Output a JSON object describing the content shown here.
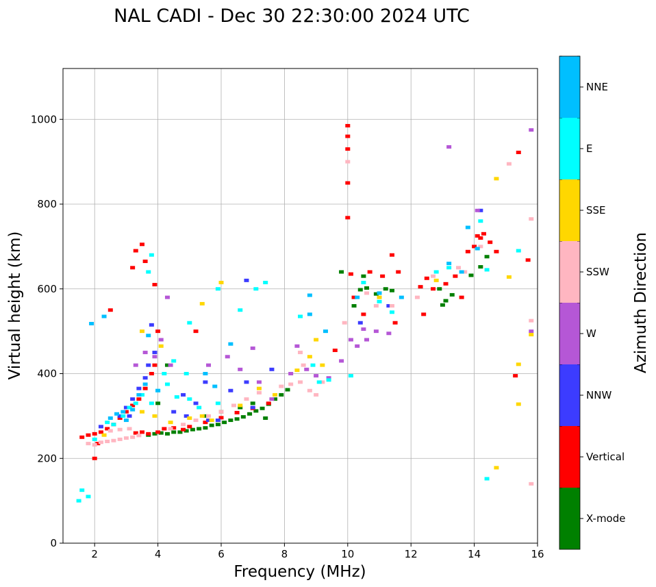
{
  "chart_data": {
    "type": "scatter",
    "title": "NAL CADI - Dec 30 22:30:00 2024 UTC",
    "xlabel": "Frequency (MHz)",
    "ylabel": "Virtual height (km)",
    "xlim": [
      1,
      16
    ],
    "ylim": [
      0,
      1120
    ],
    "xticks": [
      2,
      4,
      6,
      8,
      10,
      12,
      14,
      16
    ],
    "yticks": [
      0,
      200,
      400,
      600,
      800,
      1000
    ],
    "grid": true,
    "colorbar": {
      "label": "Azimuth Direction",
      "placement": "right",
      "categories": [
        {
          "name": "X-mode",
          "color": "#008000"
        },
        {
          "name": "Vertical",
          "color": "#ff0000"
        },
        {
          "name": "NNW",
          "color": "#3c3cff"
        },
        {
          "name": "W",
          "color": "#b557d6"
        },
        {
          "name": "SSW",
          "color": "#ffb6c1"
        },
        {
          "name": "SSE",
          "color": "#ffd700"
        },
        {
          "name": "E",
          "color": "#00ffff"
        },
        {
          "name": "NNE",
          "color": "#00bfff"
        }
      ]
    },
    "series": [
      {
        "name": "X-mode",
        "points": [
          [
            3.7,
            255
          ],
          [
            3.9,
            258
          ],
          [
            4.1,
            260
          ],
          [
            4.3,
            258
          ],
          [
            4.5,
            262
          ],
          [
            4.7,
            262
          ],
          [
            4.9,
            265
          ],
          [
            5.1,
            268
          ],
          [
            5.3,
            270
          ],
          [
            5.5,
            272
          ],
          [
            5.7,
            278
          ],
          [
            5.9,
            280
          ],
          [
            6.1,
            285
          ],
          [
            6.3,
            290
          ],
          [
            6.5,
            293
          ],
          [
            6.7,
            298
          ],
          [
            6.9,
            305
          ],
          [
            7.1,
            312
          ],
          [
            7.3,
            318
          ],
          [
            7.5,
            328
          ],
          [
            7.7,
            340
          ],
          [
            7.9,
            350
          ],
          [
            8.1,
            362
          ],
          [
            10.4,
            598
          ],
          [
            10.6,
            602
          ],
          [
            10.9,
            588
          ],
          [
            11.2,
            600
          ],
          [
            11.4,
            596
          ],
          [
            13.0,
            562
          ],
          [
            13.1,
            572
          ],
          [
            13.3,
            586
          ],
          [
            13.9,
            632
          ],
          [
            14.2,
            652
          ],
          [
            14.4,
            676
          ],
          [
            5.5,
            300
          ],
          [
            6.0,
            310
          ],
          [
            6.6,
            320
          ],
          [
            7.0,
            330
          ],
          [
            7.4,
            295
          ],
          [
            9.8,
            640
          ],
          [
            10.2,
            560
          ],
          [
            10.5,
            630
          ],
          [
            11.0,
            590
          ],
          [
            12.9,
            600
          ],
          [
            4.3,
            420
          ],
          [
            4.0,
            330
          ]
        ]
      },
      {
        "name": "Vertical",
        "points": [
          [
            1.6,
            250
          ],
          [
            1.8,
            255
          ],
          [
            2.0,
            258
          ],
          [
            2.2,
            262
          ],
          [
            2.4,
            270
          ],
          [
            2.6,
            280
          ],
          [
            2.8,
            295
          ],
          [
            3.0,
            310
          ],
          [
            3.2,
            325
          ],
          [
            3.4,
            340
          ],
          [
            3.6,
            365
          ],
          [
            3.8,
            400
          ],
          [
            3.9,
            420
          ],
          [
            3.3,
            260
          ],
          [
            3.5,
            262
          ],
          [
            3.7,
            258
          ],
          [
            4.0,
            262
          ],
          [
            4.2,
            270
          ],
          [
            4.5,
            272
          ],
          [
            4.8,
            268
          ],
          [
            5.0,
            275
          ],
          [
            5.5,
            285
          ],
          [
            6.0,
            296
          ],
          [
            6.5,
            308
          ],
          [
            7.0,
            318
          ],
          [
            7.5,
            330
          ],
          [
            3.3,
            690
          ],
          [
            3.2,
            650
          ],
          [
            3.5,
            705
          ],
          [
            3.6,
            665
          ],
          [
            2.5,
            550
          ],
          [
            3.9,
            610
          ],
          [
            4.0,
            500
          ],
          [
            5.2,
            500
          ],
          [
            10.0,
            985
          ],
          [
            10.0,
            960
          ],
          [
            10.0,
            930
          ],
          [
            10.0,
            850
          ],
          [
            10.0,
            768
          ],
          [
            10.1,
            635
          ],
          [
            10.2,
            580
          ],
          [
            10.7,
            640
          ],
          [
            11.1,
            630
          ],
          [
            11.4,
            680
          ],
          [
            11.6,
            640
          ],
          [
            12.3,
            605
          ],
          [
            12.4,
            540
          ],
          [
            12.7,
            600
          ],
          [
            13.1,
            612
          ],
          [
            13.4,
            630
          ],
          [
            13.8,
            688
          ],
          [
            14.0,
            700
          ],
          [
            14.2,
            720
          ],
          [
            14.3,
            730
          ],
          [
            14.5,
            710
          ],
          [
            14.7,
            688
          ],
          [
            14.1,
            725
          ],
          [
            13.6,
            580
          ],
          [
            15.4,
            922
          ],
          [
            15.7,
            668
          ],
          [
            15.3,
            395
          ],
          [
            9.6,
            455
          ],
          [
            10.5,
            540
          ],
          [
            11.5,
            520
          ],
          [
            2.0,
            200
          ],
          [
            2.1,
            235
          ],
          [
            12.5,
            625
          ]
        ]
      },
      {
        "name": "NNW",
        "points": [
          [
            2.8,
            300
          ],
          [
            3.0,
            320
          ],
          [
            3.2,
            340
          ],
          [
            3.4,
            365
          ],
          [
            3.6,
            390
          ],
          [
            3.7,
            420
          ],
          [
            4.8,
            350
          ],
          [
            5.2,
            330
          ],
          [
            5.6,
            290
          ],
          [
            6.3,
            360
          ],
          [
            6.8,
            380
          ],
          [
            7.0,
            320
          ],
          [
            6.8,
            620
          ],
          [
            5.5,
            380
          ],
          [
            4.5,
            310
          ],
          [
            3.9,
            450
          ],
          [
            10.4,
            520
          ],
          [
            11.3,
            560
          ],
          [
            14.2,
            785
          ],
          [
            2.2,
            275
          ],
          [
            3.1,
            300
          ],
          [
            4.9,
            300
          ],
          [
            5.9,
            290
          ],
          [
            3.8,
            515
          ],
          [
            7.6,
            410
          ]
        ]
      },
      {
        "name": "W",
        "points": [
          [
            3.3,
            420
          ],
          [
            3.6,
            450
          ],
          [
            3.9,
            440
          ],
          [
            4.1,
            480
          ],
          [
            4.4,
            420
          ],
          [
            5.6,
            420
          ],
          [
            6.2,
            440
          ],
          [
            6.6,
            410
          ],
          [
            7.2,
            380
          ],
          [
            7.6,
            340
          ],
          [
            8.2,
            400
          ],
          [
            8.4,
            465
          ],
          [
            8.7,
            410
          ],
          [
            9.0,
            395
          ],
          [
            9.4,
            390
          ],
          [
            9.8,
            430
          ],
          [
            10.1,
            480
          ],
          [
            10.3,
            465
          ],
          [
            10.6,
            480
          ],
          [
            10.9,
            500
          ],
          [
            11.3,
            495
          ],
          [
            13.2,
            935
          ],
          [
            15.8,
            975
          ],
          [
            15.8,
            500
          ],
          [
            14.1,
            785
          ],
          [
            4.3,
            580
          ],
          [
            7.0,
            460
          ],
          [
            10.5,
            505
          ]
        ]
      },
      {
        "name": "SSW",
        "points": [
          [
            2.4,
            240
          ],
          [
            2.6,
            242
          ],
          [
            2.8,
            245
          ],
          [
            3.0,
            248
          ],
          [
            3.2,
            250
          ],
          [
            3.4,
            254
          ],
          [
            2.5,
            265
          ],
          [
            2.8,
            268
          ],
          [
            3.1,
            270
          ],
          [
            4.4,
            270
          ],
          [
            4.8,
            280
          ],
          [
            5.2,
            290
          ],
          [
            5.6,
            300
          ],
          [
            6.0,
            310
          ],
          [
            6.4,
            325
          ],
          [
            6.8,
            340
          ],
          [
            7.2,
            355
          ],
          [
            8.2,
            375
          ],
          [
            8.5,
            380
          ],
          [
            8.8,
            360
          ],
          [
            9.0,
            350
          ],
          [
            8.6,
            420
          ],
          [
            8.5,
            450
          ],
          [
            9.9,
            520
          ],
          [
            10.6,
            590
          ],
          [
            10.9,
            560
          ],
          [
            11.4,
            560
          ],
          [
            12.2,
            580
          ],
          [
            12.7,
            630
          ],
          [
            13.5,
            650
          ],
          [
            13.7,
            640
          ],
          [
            14.2,
            700
          ],
          [
            15.1,
            895
          ],
          [
            15.8,
            765
          ],
          [
            15.8,
            525
          ],
          [
            15.8,
            140
          ],
          [
            10.0,
            900
          ],
          [
            1.8,
            235
          ],
          [
            2.0,
            232
          ],
          [
            2.2,
            238
          ],
          [
            9.2,
            380
          ],
          [
            7.9,
            370
          ]
        ]
      },
      {
        "name": "SSE",
        "points": [
          [
            3.5,
            310
          ],
          [
            3.9,
            300
          ],
          [
            4.4,
            285
          ],
          [
            5.0,
            295
          ],
          [
            5.4,
            300
          ],
          [
            5.7,
            290
          ],
          [
            6.6,
            325
          ],
          [
            7.2,
            365
          ],
          [
            7.7,
            350
          ],
          [
            8.4,
            408
          ],
          [
            8.8,
            440
          ],
          [
            9.0,
            480
          ],
          [
            9.2,
            420
          ],
          [
            14.7,
            860
          ],
          [
            15.1,
            628
          ],
          [
            15.4,
            422
          ],
          [
            15.4,
            328
          ],
          [
            14.7,
            178
          ],
          [
            15.8,
            492
          ],
          [
            6.0,
            615
          ],
          [
            5.4,
            565
          ],
          [
            3.5,
            500
          ],
          [
            2.3,
            255
          ],
          [
            4.1,
            465
          ],
          [
            11.0,
            580
          ],
          [
            12.8,
            620
          ]
        ]
      },
      {
        "name": "E",
        "points": [
          [
            2.4,
            285
          ],
          [
            2.6,
            280
          ],
          [
            2.9,
            300
          ],
          [
            3.1,
            320
          ],
          [
            3.3,
            330
          ],
          [
            3.5,
            350
          ],
          [
            3.8,
            330
          ],
          [
            4.0,
            360
          ],
          [
            4.3,
            375
          ],
          [
            4.6,
            345
          ],
          [
            5.0,
            340
          ],
          [
            5.3,
            320
          ],
          [
            5.9,
            330
          ],
          [
            4.2,
            400
          ],
          [
            4.5,
            430
          ],
          [
            4.9,
            400
          ],
          [
            3.7,
            640
          ],
          [
            3.8,
            680
          ],
          [
            5.0,
            520
          ],
          [
            5.9,
            600
          ],
          [
            7.1,
            600
          ],
          [
            8.9,
            420
          ],
          [
            9.1,
            380
          ],
          [
            9.4,
            385
          ],
          [
            10.1,
            395
          ],
          [
            10.5,
            615
          ],
          [
            11.0,
            570
          ],
          [
            11.4,
            545
          ],
          [
            13.2,
            650
          ],
          [
            14.2,
            760
          ],
          [
            14.4,
            645
          ],
          [
            15.4,
            690
          ],
          [
            14.4,
            152
          ],
          [
            1.6,
            125
          ],
          [
            1.8,
            110
          ],
          [
            1.5,
            100
          ],
          [
            2.0,
            245
          ],
          [
            12.8,
            640
          ],
          [
            6.6,
            550
          ],
          [
            7.4,
            615
          ],
          [
            8.5,
            535
          ]
        ]
      },
      {
        "name": "NNE",
        "points": [
          [
            2.5,
            295
          ],
          [
            2.7,
            305
          ],
          [
            2.9,
            310
          ],
          [
            3.2,
            315
          ],
          [
            3.4,
            350
          ],
          [
            3.6,
            375
          ],
          [
            3.7,
            490
          ],
          [
            5.5,
            400
          ],
          [
            5.8,
            370
          ],
          [
            6.3,
            470
          ],
          [
            8.8,
            585
          ],
          [
            8.8,
            540
          ],
          [
            9.3,
            500
          ],
          [
            10.3,
            580
          ],
          [
            11.0,
            590
          ],
          [
            11.7,
            580
          ],
          [
            13.2,
            660
          ],
          [
            13.6,
            640
          ],
          [
            13.8,
            745
          ],
          [
            14.1,
            695
          ],
          [
            1.9,
            518
          ],
          [
            2.3,
            535
          ],
          [
            4.0,
            360
          ],
          [
            3.0,
            290
          ]
        ]
      }
    ]
  }
}
